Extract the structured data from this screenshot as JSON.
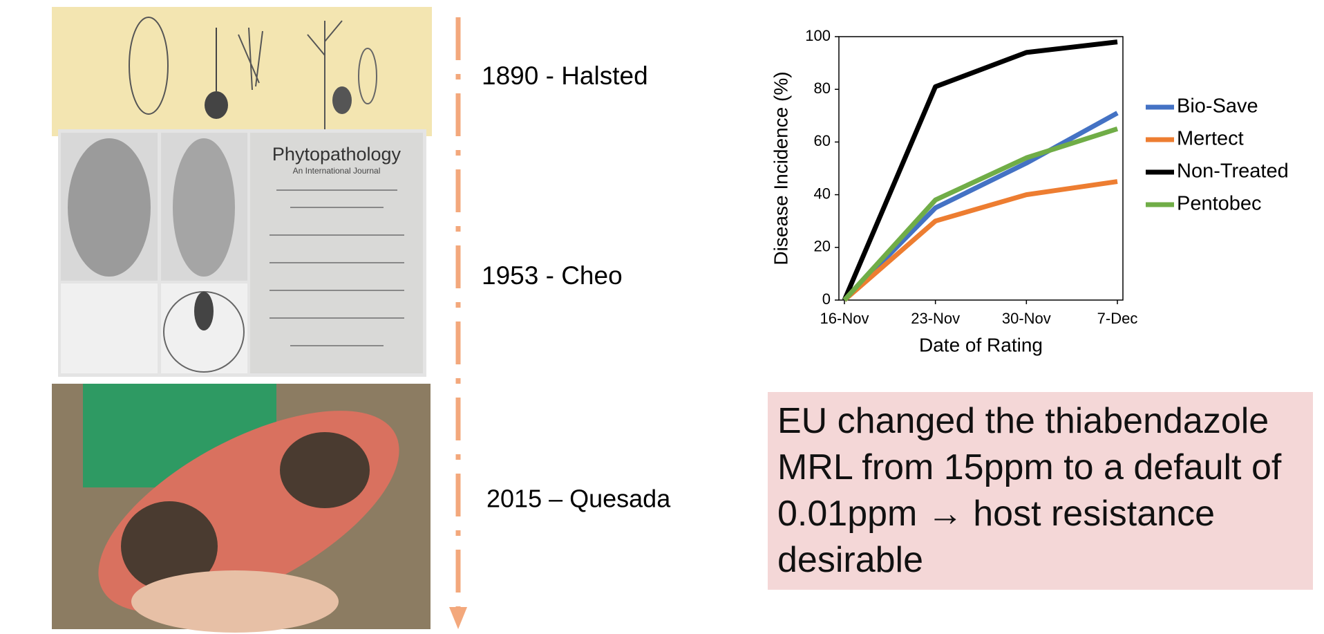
{
  "timeline": {
    "items": [
      {
        "label": "1890 - Halsted"
      },
      {
        "label": "1953 - Cheo"
      },
      {
        "label": "2015 – Quesada"
      }
    ]
  },
  "journal": {
    "title": "Phytopathology",
    "subtitle": "An International Journal"
  },
  "chart_data": {
    "type": "line",
    "x_label": "Date of Rating",
    "y_label": "Disease Incidence (%)",
    "categories": [
      "16-Nov",
      "23-Nov",
      "30-Nov",
      "7-Dec"
    ],
    "series": [
      {
        "name": "Bio-Save",
        "color": "#4472c4",
        "values": [
          0,
          35,
          52,
          71
        ]
      },
      {
        "name": "Mertect",
        "color": "#ed7d31",
        "values": [
          0,
          30,
          40,
          45
        ]
      },
      {
        "name": "Non-Treated",
        "color": "#000000",
        "values": [
          0,
          81,
          94,
          98
        ]
      },
      {
        "name": "Pentobec",
        "color": "#70ad47",
        "values": [
          0,
          38,
          54,
          65
        ]
      }
    ],
    "ylim": [
      0,
      100
    ],
    "yticks": [
      0,
      20,
      40,
      60,
      80,
      100
    ],
    "legend": "right"
  },
  "callout": {
    "text": "EU changed the thiabendazole MRL from 15ppm to a default of 0.01ppm → host resistance desirable"
  }
}
